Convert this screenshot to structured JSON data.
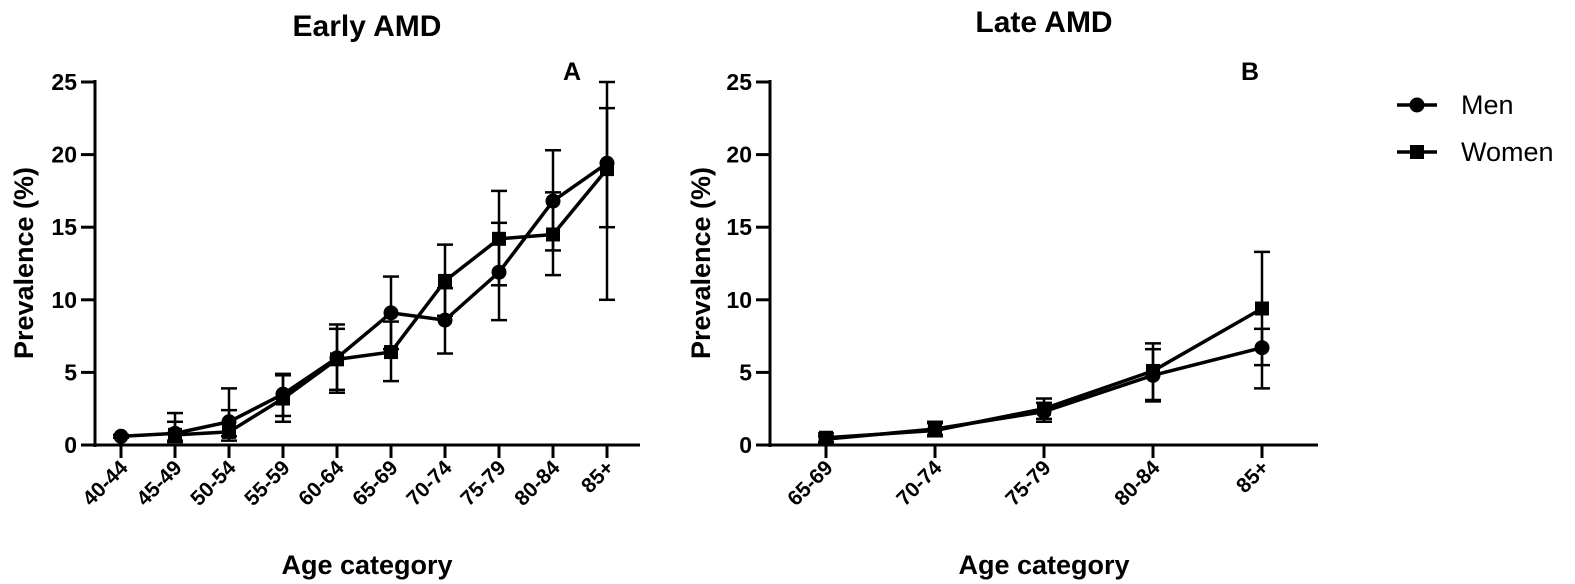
{
  "legend": {
    "placement": "right",
    "items": [
      {
        "label": "Men",
        "marker": "circle"
      },
      {
        "label": "Women",
        "marker": "square"
      }
    ]
  },
  "colors": {
    "line": "#000000",
    "background": "#ffffff"
  },
  "chart_data": [
    {
      "type": "line",
      "title": "Early AMD",
      "panel_label": "A",
      "xlabel": "Age category",
      "ylabel": "Prevalence (%)",
      "ylim": [
        0,
        25
      ],
      "yticks": [
        0,
        5,
        10,
        15,
        20,
        25
      ],
      "grid": false,
      "categories": [
        "40-44",
        "45-49",
        "50-54",
        "55-59",
        "60-64",
        "65-69",
        "70-74",
        "75-79",
        "80-84",
        "85+"
      ],
      "series": [
        {
          "name": "Men",
          "marker": "circle",
          "values": [
            0.6,
            0.8,
            1.6,
            3.5,
            6.0,
            9.1,
            8.6,
            11.9,
            16.8,
            19.4
          ],
          "error_low": [
            0.5,
            0.3,
            0.6,
            2.0,
            3.8,
            6.6,
            6.3,
            8.6,
            13.4,
            15.0
          ],
          "error_high": [
            0.7,
            1.6,
            3.9,
            4.9,
            8.3,
            11.6,
            10.8,
            15.3,
            20.3,
            23.2
          ]
        },
        {
          "name": "Women",
          "marker": "square",
          "values": [
            null,
            0.7,
            0.9,
            3.2,
            5.9,
            6.4,
            11.3,
            14.2,
            14.5,
            19.0
          ],
          "error_low": [
            null,
            0.2,
            0.3,
            1.6,
            3.6,
            4.4,
            8.9,
            11.0,
            11.7,
            10.0
          ],
          "error_high": [
            null,
            2.2,
            2.4,
            4.8,
            8.0,
            8.5,
            13.8,
            17.5,
            17.4,
            25.0
          ]
        }
      ]
    },
    {
      "type": "line",
      "title": "Late AMD",
      "panel_label": "B",
      "xlabel": "Age category",
      "ylabel": "Prevalence (%)",
      "ylim": [
        0,
        25
      ],
      "yticks": [
        0,
        5,
        10,
        15,
        20,
        25
      ],
      "grid": false,
      "categories": [
        "65-69",
        "70-74",
        "75-79",
        "80-84",
        "85+"
      ],
      "series": [
        {
          "name": "Men",
          "marker": "circle",
          "values": [
            0.4,
            1.1,
            2.3,
            4.8,
            6.7
          ],
          "error_low": [
            0.2,
            0.7,
            1.6,
            3.1,
            5.5
          ],
          "error_high": [
            0.6,
            1.6,
            2.9,
            6.6,
            8.0
          ]
        },
        {
          "name": "Women",
          "marker": "square",
          "values": [
            0.5,
            1.0,
            2.5,
            5.1,
            9.4
          ],
          "error_low": [
            0.2,
            0.6,
            1.8,
            3.0,
            3.9
          ],
          "error_high": [
            0.8,
            1.5,
            3.2,
            7.0,
            13.3
          ]
        }
      ]
    }
  ]
}
